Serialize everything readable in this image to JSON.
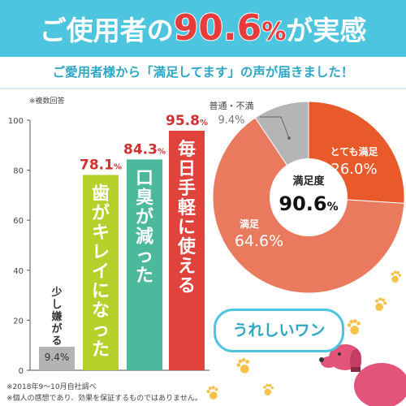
{
  "header": {
    "pre": "ご使用者の",
    "value": "90.6",
    "unit": "%",
    "post": "が実感",
    "subtitle": "ご愛用者様から「満足してます」の声が届きました！"
  },
  "notes": {
    "multiple": "※複数回答",
    "period": "※2018年9～10月自社調べ",
    "disclaimer": "※個人の感想であり、効果を保証するものではありません。"
  },
  "bubble": "うれしいワン",
  "colors": {
    "header_bg": "#4ec5de",
    "accent_red": "#e63c3c",
    "bar_gray": "#b3b3b3",
    "bar_lime": "#b5cf2b",
    "bar_teal": "#4cb99d",
    "bar_red": "#e0423c",
    "pie_dark": "#e85a2a",
    "pie_light": "#ea7a5e",
    "pie_gray": "#b5b5b5",
    "dog": "#e2547a",
    "paw": "#f6c24a"
  },
  "chart_data": [
    {
      "type": "bar",
      "categories": [
        "少し嫌がる",
        "歯がキレイになった",
        "口臭が減った",
        "毎日手軽に使える"
      ],
      "values": [
        9.4,
        78.1,
        84.3,
        95.8
      ],
      "value_labels": [
        "9.4%",
        "78.1%",
        "84.3%",
        "95.8%"
      ],
      "ylim": [
        0,
        100
      ],
      "yticks": [
        0,
        20,
        40,
        60,
        80,
        100
      ],
      "grid": false,
      "colors": [
        "#b3b3b3",
        "#b5cf2b",
        "#4cb99d",
        "#e0423c"
      ]
    },
    {
      "type": "pie",
      "center_label": "満足度",
      "center_value": "90.6%",
      "slices": [
        {
          "label": "とても満足",
          "value": 26.0,
          "display": "26.0%",
          "color": "#e85a2a"
        },
        {
          "label": "満足",
          "value": 64.6,
          "display": "64.6%",
          "color": "#ea7a5e"
        },
        {
          "label": "普通・不満",
          "value": 9.4,
          "display": "9.4%",
          "color": "#b5b5b5"
        }
      ]
    }
  ]
}
